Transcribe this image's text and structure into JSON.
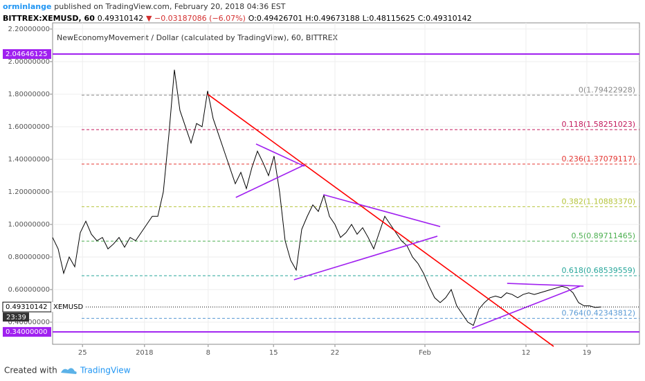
{
  "header": {
    "author": "orminlange",
    "published": "published on TradingView.com, February 20, 2018 04:36 EST",
    "symbol": "BITTREX:XEMUSD, 60",
    "price": "0.49310142",
    "change": "▼ −0.03187086 (−6.07%)",
    "open": "O:0.49426701",
    "high": "H:0.49673188",
    "low": "L:0.48115625",
    "close": "C:0.49310142"
  },
  "chart_data": {
    "type": "line",
    "title": "NewEconomyMovement / Dollar (calculated by TradingView), 60, BITTREX",
    "series": [
      {
        "name": "XEMUSD",
        "color": "#000000",
        "values": [
          0.92,
          0.85,
          0.7,
          0.8,
          0.74,
          0.95,
          1.02,
          0.94,
          0.9,
          0.92,
          0.85,
          0.88,
          0.92,
          0.86,
          0.92,
          0.9,
          0.95,
          1.0,
          1.05,
          1.05,
          1.2,
          1.55,
          1.95,
          1.7,
          1.6,
          1.5,
          1.62,
          1.6,
          1.82,
          1.65,
          1.55,
          1.45,
          1.35,
          1.25,
          1.32,
          1.22,
          1.35,
          1.45,
          1.38,
          1.3,
          1.42,
          1.2,
          0.9,
          0.78,
          0.72,
          0.97,
          1.05,
          1.12,
          1.08,
          1.18,
          1.05,
          1.0,
          0.92,
          0.95,
          1.0,
          0.94,
          0.98,
          0.92,
          0.85,
          0.95,
          1.05,
          1.0,
          0.95,
          0.9,
          0.87,
          0.8,
          0.76,
          0.7,
          0.62,
          0.55,
          0.52,
          0.55,
          0.6,
          0.5,
          0.45,
          0.4,
          0.38,
          0.48,
          0.52,
          0.55,
          0.56,
          0.55,
          0.58,
          0.57,
          0.55,
          0.57,
          0.58,
          0.57,
          0.58,
          0.59,
          0.6,
          0.61,
          0.62,
          0.61,
          0.58,
          0.52,
          0.5,
          0.5,
          0.49,
          0.493
        ]
      }
    ],
    "xlim": [
      0,
      106
    ],
    "ylim": [
      0.264,
      2.238
    ],
    "xticks": [
      {
        "value": 5.4,
        "label": "25"
      },
      {
        "value": 16.6,
        "label": "2018"
      },
      {
        "value": 28.1,
        "label": "8"
      },
      {
        "value": 39.9,
        "label": "15"
      },
      {
        "value": 51,
        "label": "22"
      },
      {
        "value": 67.25,
        "label": "Feb"
      },
      {
        "value": 85.5,
        "label": "12"
      },
      {
        "value": 96.5,
        "label": "19"
      }
    ],
    "yticks": [
      {
        "value": 2.2,
        "label": "2.20000000"
      },
      {
        "value": 2.0,
        "label": "2.00000000"
      },
      {
        "value": 1.8,
        "label": "1.80000000"
      },
      {
        "value": 1.6,
        "label": "1.60000000"
      },
      {
        "value": 1.4,
        "label": "1.40000000"
      },
      {
        "value": 1.2,
        "label": "1.20000000"
      },
      {
        "value": 1.0,
        "label": "1.00000000"
      },
      {
        "value": 0.8,
        "label": "0.80000000"
      },
      {
        "value": 0.6,
        "label": "0.60000000"
      },
      {
        "value": 0.4,
        "label": "0.40000000"
      }
    ],
    "grid": true,
    "fib_levels": [
      {
        "label": "0(1.79422928)",
        "value": 1.79422928,
        "color": "#888888"
      },
      {
        "label": "0.118(1.58251023)",
        "value": 1.58251023,
        "color": "#c2185b"
      },
      {
        "label": "0.236(1.37079117)",
        "value": 1.37079117,
        "color": "#e53935"
      },
      {
        "label": "0.382(1.10883370)",
        "value": 1.1088337,
        "color": "#b5c43a"
      },
      {
        "label": "0.5(0.89711465)",
        "value": 0.89711465,
        "color": "#4caf50"
      },
      {
        "label": "0.618(0.68539559)",
        "value": 0.68539559,
        "color": "#26a69a"
      },
      {
        "label": "0.764(0.42343812)",
        "value": 0.42343812,
        "color": "#5b9bd5"
      }
    ],
    "levels": [
      {
        "value": 2.04646125,
        "label": "2.04646125",
        "color": "#a020f0"
      },
      {
        "value": 0.34,
        "label": "0.34000000",
        "color": "#a020f0"
      }
    ],
    "last": {
      "value": 0.49310142,
      "label": "0.49310142",
      "tag": "XEMUSD",
      "countdown": "23:39"
    },
    "trendlines": [
      {
        "color": "#ff0000",
        "x": [
          28,
          90.5
        ],
        "y": [
          1.8,
          0.251
        ]
      },
      {
        "color": "#a020f0",
        "x": [
          33.1,
          45.5
        ],
        "y": [
          1.166,
          1.366
        ]
      },
      {
        "color": "#a020f0",
        "x": [
          36.75,
          45.5
        ],
        "y": [
          1.494,
          1.357
        ]
      },
      {
        "color": "#a020f0",
        "x": [
          43.6,
          69.5
        ],
        "y": [
          0.66,
          0.928
        ]
      },
      {
        "color": "#a020f0",
        "x": [
          48.9,
          70
        ],
        "y": [
          1.183,
          0.987
        ]
      },
      {
        "color": "#a020f0",
        "x": [
          75.75,
          95.25
        ],
        "y": [
          0.362,
          0.621
        ]
      },
      {
        "color": "#a020f0",
        "x": [
          82.1,
          95.9
        ],
        "y": [
          0.638,
          0.621
        ]
      }
    ]
  },
  "footer": {
    "created": "Created with",
    "brand": "TradingView"
  }
}
